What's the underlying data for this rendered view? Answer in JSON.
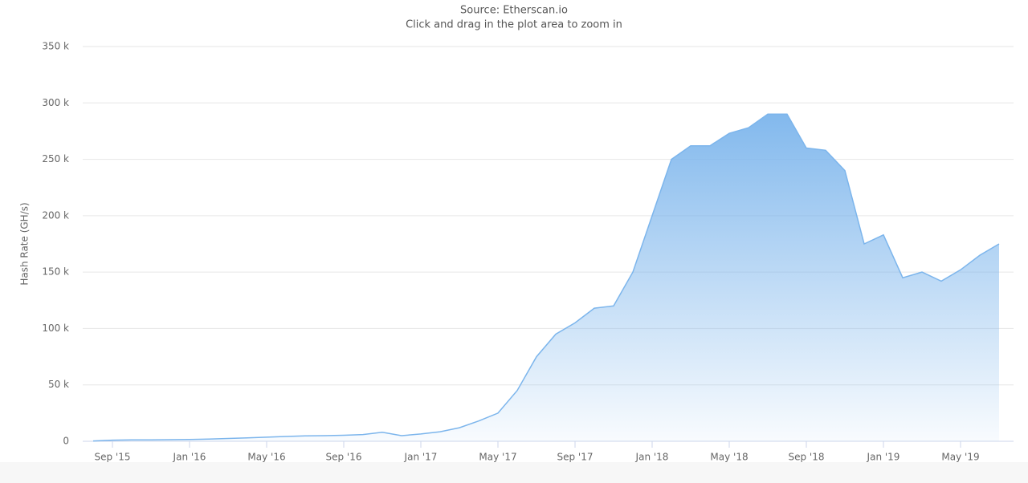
{
  "chart_data": {
    "type": "area",
    "subtitle": "Source: Etherscan.io",
    "caption": "Click and drag in the plot area to zoom in",
    "y_label": "Hash Rate (GH/s)",
    "color": "#7cb5ec",
    "grid": true,
    "x": [
      "2015-08",
      "2015-09",
      "2015-10",
      "2015-11",
      "2015-12",
      "2016-01",
      "2016-02",
      "2016-03",
      "2016-04",
      "2016-05",
      "2016-06",
      "2016-07",
      "2016-08",
      "2016-09",
      "2016-10",
      "2016-11",
      "2016-12",
      "2017-01",
      "2017-02",
      "2017-03",
      "2017-04",
      "2017-05",
      "2017-06",
      "2017-07",
      "2017-08",
      "2017-09",
      "2017-10",
      "2017-11",
      "2017-12",
      "2018-01",
      "2018-02",
      "2018-03",
      "2018-04",
      "2018-05",
      "2018-06",
      "2018-07",
      "2018-08",
      "2018-09",
      "2018-10",
      "2018-11",
      "2018-12",
      "2019-01",
      "2019-02",
      "2019-03",
      "2019-04",
      "2019-05",
      "2019-06",
      "2019-07"
    ],
    "values": [
      300,
      1000,
      1200,
      1300,
      1400,
      1600,
      2000,
      2500,
      3000,
      3600,
      4300,
      4800,
      5000,
      5300,
      6000,
      8000,
      5000,
      6500,
      8500,
      12000,
      18000,
      25000,
      45000,
      75000,
      95000,
      105000,
      118000,
      120000,
      150000,
      200000,
      250000,
      262000,
      262000,
      273000,
      278000,
      290000,
      290000,
      260000,
      258000,
      240000,
      175000,
      183000,
      145000,
      150000,
      142000,
      152000,
      165000,
      175000
    ],
    "xlim": [
      "2015-07",
      "2019-08"
    ],
    "xticks": [
      {
        "value": "2015-09",
        "label": "Sep '15"
      },
      {
        "value": "2016-01",
        "label": "Jan '16"
      },
      {
        "value": "2016-05",
        "label": "May '16"
      },
      {
        "value": "2016-09",
        "label": "Sep '16"
      },
      {
        "value": "2017-01",
        "label": "Jan '17"
      },
      {
        "value": "2017-05",
        "label": "May '17"
      },
      {
        "value": "2017-09",
        "label": "Sep '17"
      },
      {
        "value": "2018-01",
        "label": "Jan '18"
      },
      {
        "value": "2018-05",
        "label": "May '18"
      },
      {
        "value": "2018-09",
        "label": "Sep '18"
      },
      {
        "value": "2019-01",
        "label": "Jan '19"
      },
      {
        "value": "2019-05",
        "label": "May '19"
      }
    ],
    "ylim": [
      0,
      350000
    ],
    "yticks": [
      0,
      {
        "value": 50000,
        "label": "50 k"
      },
      {
        "value": 100000,
        "label": "100 k"
      },
      {
        "value": 150000,
        "label": "150 k"
      },
      {
        "value": 200000,
        "label": "200 k"
      },
      {
        "value": 250000,
        "label": "250 k"
      },
      {
        "value": 300000,
        "label": "300 k"
      },
      {
        "value": 350000,
        "label": "350 k"
      }
    ]
  }
}
